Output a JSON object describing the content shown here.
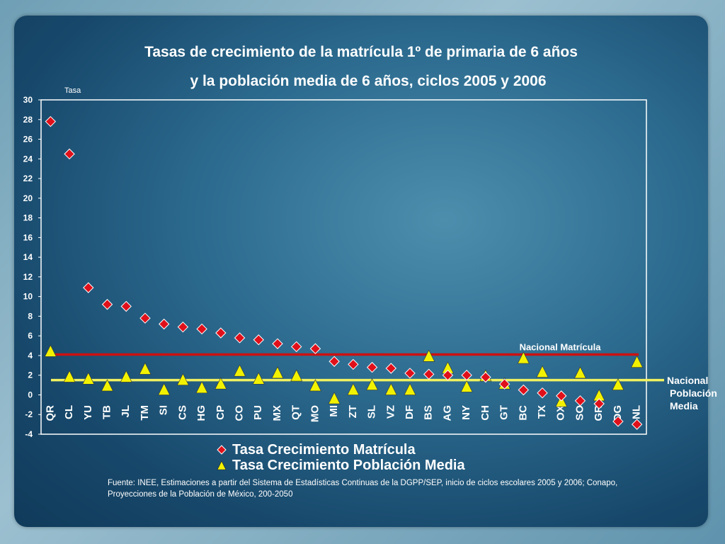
{
  "title_line1": "Tasas de crecimiento de la matrícula 1º de primaria  de 6 años",
  "title_line2": "y  la población media de 6 años, ciclos 2005 y 2006",
  "source_line1": "Fuente: INEE, Estimaciones a partir del Sistema de Estadísticas Continuas de la DGPP/SEP, inicio de ciclos escolares  2005 y 2006; Conapo,",
  "source_line2": "Proyecciones de la Población de México, 200-2050",
  "colors": {
    "matricula": "#e0101a",
    "poblacion": "#f2f200",
    "nacional_matricula_line": "#cc1111",
    "nacional_poblacion_line": "#f0f060",
    "plot_border": "#ffffff",
    "text": "#ffffff"
  },
  "chart_data": {
    "type": "scatter",
    "ylabel": "Tasa",
    "ylim": [
      -4,
      30
    ],
    "yticks": [
      -4,
      -2,
      0,
      2,
      4,
      6,
      8,
      10,
      12,
      14,
      16,
      18,
      20,
      22,
      24,
      26,
      28,
      30
    ],
    "categories": [
      "QR",
      "CL",
      "YU",
      "TB",
      "JL",
      "TM",
      "SI",
      "CS",
      "HG",
      "CP",
      "CO",
      "PU",
      "MX",
      "QT",
      "MO",
      "MI",
      "ZT",
      "SL",
      "VZ",
      "DF",
      "BS",
      "AG",
      "NY",
      "CH",
      "GT",
      "BC",
      "TX",
      "OX",
      "SO",
      "GR",
      "DG",
      "NL"
    ],
    "series": [
      {
        "name": "Tasa Crecimiento Matrícula",
        "marker": "diamond",
        "values": [
          27.8,
          24.5,
          10.9,
          9.2,
          9.0,
          7.8,
          7.2,
          6.9,
          6.7,
          6.3,
          5.8,
          5.6,
          5.2,
          4.9,
          4.7,
          3.4,
          3.1,
          2.8,
          2.7,
          2.2,
          2.1,
          2.0,
          2.0,
          1.8,
          1.1,
          0.5,
          0.2,
          -0.1,
          -0.6,
          -0.9,
          -2.7,
          -3.0
        ]
      },
      {
        "name": "Tasa Crecimiento Población Media",
        "marker": "triangle",
        "values": [
          4.4,
          1.8,
          1.6,
          0.9,
          1.8,
          2.6,
          0.5,
          1.5,
          0.7,
          1.1,
          2.4,
          1.6,
          2.2,
          1.9,
          0.9,
          -0.4,
          0.5,
          1.0,
          0.5,
          0.5,
          3.9,
          2.7,
          0.8,
          1.9,
          1.1,
          3.7,
          2.3,
          -0.7,
          2.2,
          -0.1,
          1.0,
          3.3
        ]
      }
    ],
    "reference_lines": [
      {
        "name": "Nacional Matrícula",
        "value": 4.1
      },
      {
        "name_lines": [
          "Nacional",
          "Población",
          "Media"
        ],
        "value": 1.5
      }
    ]
  }
}
